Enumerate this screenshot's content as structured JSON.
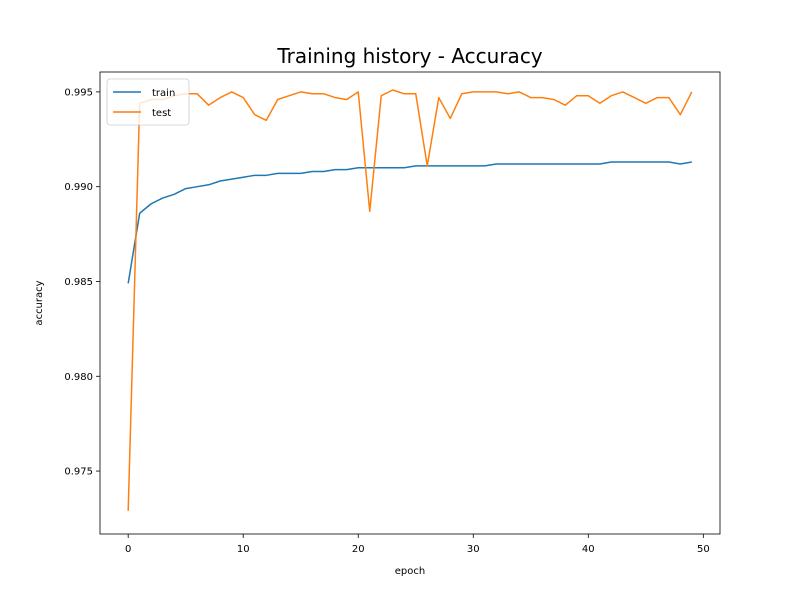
{
  "chart_data": {
    "type": "line",
    "title": "Training history - Accuracy",
    "xlabel": "epoch",
    "ylabel": "accuracy",
    "xlim": [
      -2.45,
      51.45
    ],
    "ylim": [
      0.97168,
      0.99605
    ],
    "x_ticks": [
      0,
      10,
      20,
      30,
      40,
      50
    ],
    "y_ticks": [
      0.975,
      0.98,
      0.985,
      0.99,
      0.995
    ],
    "x_tick_labels": [
      "0",
      "10",
      "20",
      "30",
      "40",
      "50"
    ],
    "y_tick_labels": [
      "0.975",
      "0.980",
      "0.985",
      "0.990",
      "0.995"
    ],
    "grid": false,
    "legend_position": "upper-left",
    "x": [
      0,
      1,
      2,
      3,
      4,
      5,
      6,
      7,
      8,
      9,
      10,
      11,
      12,
      13,
      14,
      15,
      16,
      17,
      18,
      19,
      20,
      21,
      22,
      23,
      24,
      25,
      26,
      27,
      28,
      29,
      30,
      31,
      32,
      33,
      34,
      35,
      36,
      37,
      38,
      39,
      40,
      41,
      42,
      43,
      44,
      45,
      46,
      47,
      48,
      49
    ],
    "series": [
      {
        "name": "train",
        "color": "#1f77b4",
        "values": [
          0.9849,
          0.9886,
          0.9891,
          0.9894,
          0.9896,
          0.9899,
          0.99,
          0.9901,
          0.9903,
          0.9904,
          0.9905,
          0.9906,
          0.9906,
          0.9907,
          0.9907,
          0.9907,
          0.9908,
          0.9908,
          0.9909,
          0.9909,
          0.991,
          0.991,
          0.991,
          0.991,
          0.991,
          0.9911,
          0.9911,
          0.9911,
          0.9911,
          0.9911,
          0.9911,
          0.9911,
          0.9912,
          0.9912,
          0.9912,
          0.9912,
          0.9912,
          0.9912,
          0.9912,
          0.9912,
          0.9912,
          0.9912,
          0.9913,
          0.9913,
          0.9913,
          0.9913,
          0.9913,
          0.9913,
          0.9912,
          0.9913
        ]
      },
      {
        "name": "test",
        "color": "#ff7f0e",
        "values": [
          0.9729,
          0.9944,
          0.9946,
          0.9946,
          0.9948,
          0.9949,
          0.9949,
          0.9943,
          0.9947,
          0.995,
          0.9947,
          0.9938,
          0.9935,
          0.9946,
          0.9948,
          0.995,
          0.9949,
          0.9949,
          0.9947,
          0.9946,
          0.995,
          0.9887,
          0.9948,
          0.9951,
          0.9949,
          0.9949,
          0.9911,
          0.9947,
          0.9936,
          0.9949,
          0.995,
          0.995,
          0.995,
          0.9949,
          0.995,
          0.9947,
          0.9947,
          0.9946,
          0.9943,
          0.9948,
          0.9948,
          0.9944,
          0.9948,
          0.995,
          0.9947,
          0.9944,
          0.9947,
          0.9947,
          0.9938,
          0.995
        ]
      }
    ]
  }
}
